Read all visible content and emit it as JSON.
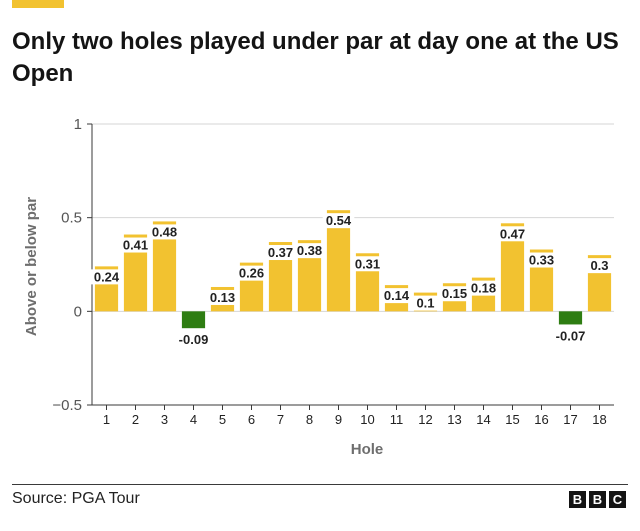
{
  "header": {
    "title": "Only two holes played under par at day one at the US Open"
  },
  "footer": {
    "source": "Source: PGA Tour",
    "logo_letters": [
      "B",
      "B",
      "C"
    ]
  },
  "colors": {
    "above_par": "#f2c230",
    "below_par": "#2e7d12",
    "axis": "#3a3a3a",
    "grid": "#d6d6d6",
    "label_text": "#222222",
    "axis_title": "#6e6e6e"
  },
  "chart_data": {
    "type": "bar",
    "categories": [
      "1",
      "2",
      "3",
      "4",
      "5",
      "6",
      "7",
      "8",
      "9",
      "10",
      "11",
      "12",
      "13",
      "14",
      "15",
      "16",
      "17",
      "18"
    ],
    "values": [
      0.24,
      0.41,
      0.48,
      -0.09,
      0.13,
      0.26,
      0.37,
      0.38,
      0.54,
      0.31,
      0.14,
      0.1,
      0.15,
      0.18,
      0.47,
      0.33,
      -0.07,
      0.3
    ],
    "value_labels": [
      "0.24",
      "0.41",
      "0.48",
      "-0.09",
      "0.13",
      "0.26",
      "0.37",
      "0.38",
      "0.54",
      "0.31",
      "0.14",
      "0.1",
      "0.15",
      "0.18",
      "0.47",
      "0.33",
      "-0.07",
      "0.3"
    ],
    "ylim": [
      -0.5,
      1
    ],
    "yticks": [
      -0.5,
      0,
      0.5,
      1
    ],
    "ytick_labels": [
      "−0.5",
      "0",
      "0.5",
      "1"
    ],
    "xlabel": "Hole",
    "ylabel": "Above or below par",
    "grid": true
  }
}
